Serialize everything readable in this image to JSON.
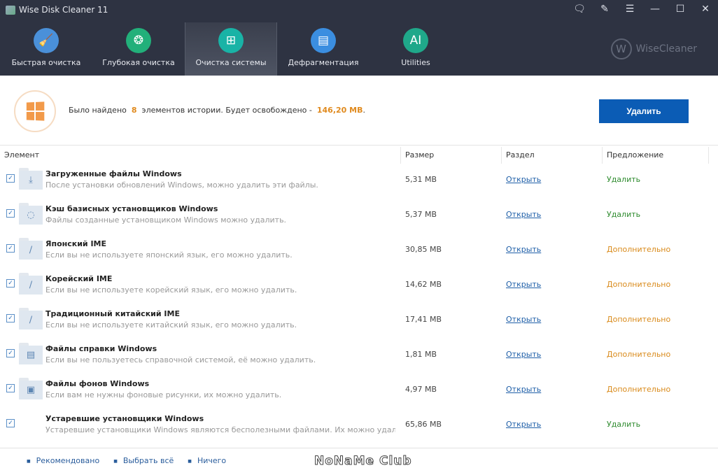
{
  "app": {
    "title": "Wise Disk Cleaner 11",
    "brand": "WiseCleaner"
  },
  "window_buttons": [
    "feedback-icon",
    "notes-icon",
    "menu-icon",
    "minimize-icon",
    "maximize-icon",
    "close-icon"
  ],
  "nav": [
    {
      "label": "Быстрая очистка",
      "icon": "broom-icon",
      "color": "#4a90d9"
    },
    {
      "label": "Глубокая очистка",
      "icon": "vacuum-icon",
      "color": "#22b07a"
    },
    {
      "label": "Очистка системы",
      "icon": "windows-icon",
      "color": "#19b3a6",
      "active": true
    },
    {
      "label": "Дефрагментация",
      "icon": "disk-icon",
      "color": "#3b8ee0"
    },
    {
      "label": "Utilities",
      "icon": "ai-icon",
      "color": "#1fa88a"
    }
  ],
  "summary": {
    "prefix": "Было найдено",
    "count": "8",
    "middle": "элементов истории. Будет освобождено -",
    "size": "146,20 MB",
    "suffix": ".",
    "delete_label": "Удалить"
  },
  "columns": [
    "Элемент",
    "Размер",
    "Раздел",
    "Предложение"
  ],
  "colors": {
    "remove": "#2e8b2e",
    "advanced": "#d98a1a",
    "accent": "#0b5cb5"
  },
  "rows": [
    {
      "name": "Загруженные файлы Windows",
      "desc": "После установки обновлений Windows, можно удалить эти файлы.",
      "size": "5,31 MB",
      "link": "Открыть",
      "suggestion": "Удалить",
      "type": "remove",
      "icon": "download-icon",
      "checked": true
    },
    {
      "name": "Кэш базисных установщиков Windows",
      "desc": "Файлы созданные установщиком Windows можно удалить.",
      "size": "5,37 MB",
      "link": "Открыть",
      "suggestion": "Удалить",
      "type": "remove",
      "icon": "loading-icon",
      "checked": true
    },
    {
      "name": "Японский IME",
      "desc": "Если вы не используете японский язык, его можно удалить.",
      "size": "30,85 MB",
      "link": "Открыть",
      "suggestion": "Дополнительно",
      "type": "advanced",
      "icon": "pen-icon",
      "checked": true
    },
    {
      "name": "Корейский IME",
      "desc": "Если вы не используете корейский язык, его можно удалить.",
      "size": "14,62 MB",
      "link": "Открыть",
      "suggestion": "Дополнительно",
      "type": "advanced",
      "icon": "pen-icon",
      "checked": true
    },
    {
      "name": "Традиционный китайский IME",
      "desc": "Если вы не используете китайский язык, его можно удалить.",
      "size": "17,41 MB",
      "link": "Открыть",
      "suggestion": "Дополнительно",
      "type": "advanced",
      "icon": "pen-icon",
      "checked": true
    },
    {
      "name": "Файлы справки Windows",
      "desc": "Если вы не пользуетесь справочной системой, её можно удалить.",
      "size": "1,81 MB",
      "link": "Открыть",
      "suggestion": "Дополнительно",
      "type": "advanced",
      "icon": "help-file-icon",
      "checked": true
    },
    {
      "name": "Файлы фонов Windows",
      "desc": "Если вам не нужны фоновые рисунки, их можно удалить.",
      "size": "4,97 MB",
      "link": "Открыть",
      "suggestion": "Дополнительно",
      "type": "advanced",
      "icon": "image-icon",
      "checked": true
    },
    {
      "name": "Устаревшие установщики Windows",
      "desc": "Устаревшие установщики Windows являются бесполезными файлами. Их можно удалить, чтоб...",
      "size": "65,86 MB",
      "link": "Открыть",
      "suggestion": "Удалить",
      "type": "remove",
      "icon": "none",
      "checked": true
    }
  ],
  "footer": [
    "Рекомендовано",
    "Выбрать всё",
    "Ничего"
  ],
  "watermark": "NoNaMe Club"
}
